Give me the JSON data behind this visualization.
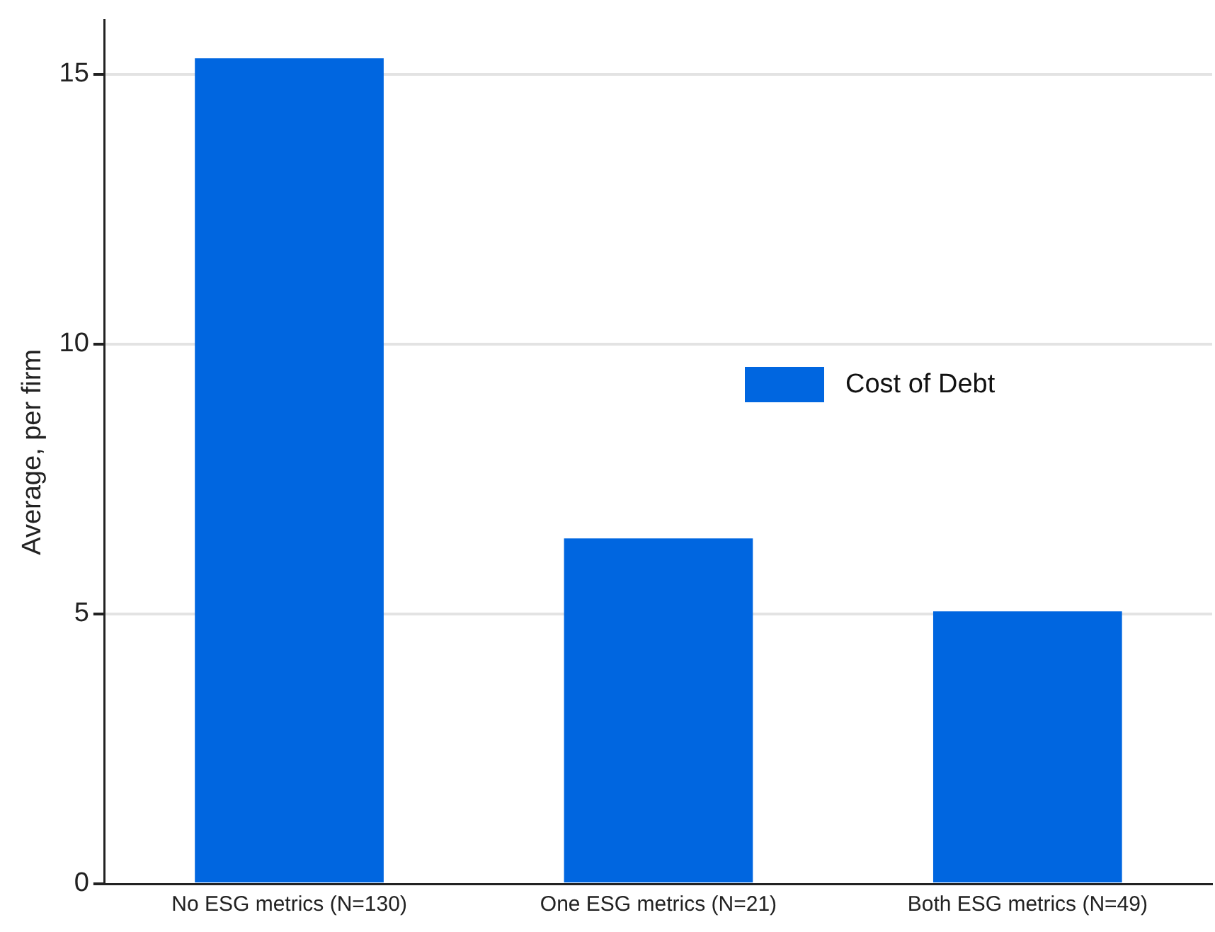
{
  "chart_data": {
    "type": "bar",
    "ylabel": "Average, per firm",
    "categories": [
      "No ESG metrics (N=130)",
      "One ESG metrics (N=21)",
      "Both ESG metrics (N=49)"
    ],
    "series": [
      {
        "name": "Cost of Debt",
        "color": "#0066e0",
        "values": [
          15.3,
          6.4,
          5.05
        ]
      }
    ],
    "ylim": [
      0,
      16
    ],
    "yticks": [
      0,
      5,
      10,
      15
    ],
    "grid": "y",
    "legend": "right"
  }
}
